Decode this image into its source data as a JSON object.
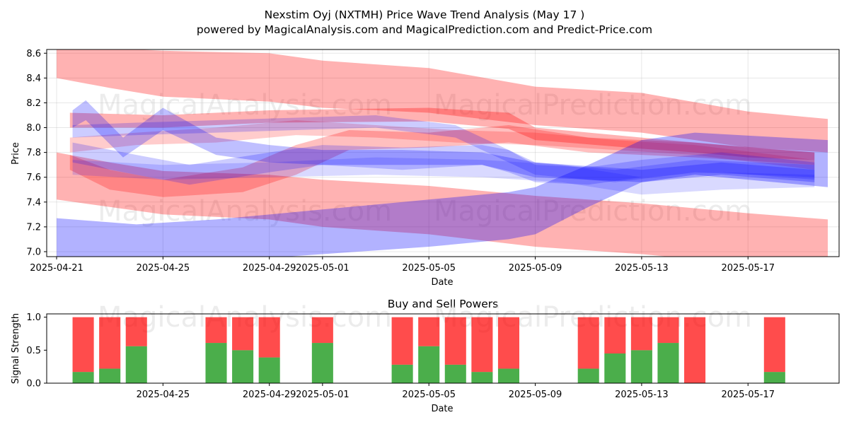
{
  "title_line1": "Nexstim Oyj (NXTMH) Price Wave Trend Analysis (May 17 )",
  "title_line2": "powered by MagicalAnalysis.com and MagicalPrediction.com and Predict-Price.com",
  "watermarks": [
    "MagicalAnalysis.com",
    "MagicalPrediction.com"
  ],
  "colors": {
    "red": "#ff0000",
    "blue": "#0000ff",
    "purple": "#800080",
    "buy": "#2ca02c",
    "sell": "#ff0000"
  },
  "chart_data": [
    {
      "type": "area",
      "ylabel": "Price",
      "xlabel": "Date",
      "ylim": [
        6.96,
        8.63
      ],
      "x_range": [
        "2025-04-21",
        "2025-05-20"
      ],
      "y_ticks": [
        "7.0",
        "7.2",
        "7.4",
        "7.6",
        "7.8",
        "8.0",
        "8.2",
        "8.4",
        "8.6"
      ],
      "x_ticks": [
        "2025-04-21",
        "2025-04-25",
        "2025-04-29",
        "2025-05-01",
        "2025-05-05",
        "2025-05-09",
        "2025-05-13",
        "2025-05-17"
      ],
      "grid": true,
      "bands": [
        {
          "name": "red upper channel",
          "color": "red",
          "opacity": 0.3,
          "x": [
            0,
            2,
            4,
            8,
            10,
            14,
            18,
            22,
            26,
            29
          ],
          "upper": [
            8.66,
            8.64,
            8.62,
            8.6,
            8.54,
            8.48,
            8.33,
            8.28,
            8.13,
            8.07
          ],
          "lower": [
            8.4,
            8.32,
            8.25,
            8.21,
            8.16,
            8.12,
            8.02,
            7.96,
            7.84,
            7.8
          ]
        },
        {
          "name": "red lower channel",
          "color": "red",
          "opacity": 0.3,
          "x": [
            0,
            2,
            4,
            8,
            10,
            14,
            18,
            22,
            26,
            29
          ],
          "upper": [
            7.8,
            7.72,
            7.65,
            7.62,
            7.58,
            7.53,
            7.45,
            7.39,
            7.31,
            7.26
          ],
          "lower": [
            7.42,
            7.36,
            7.3,
            7.26,
            7.2,
            7.14,
            7.04,
            6.98,
            6.9,
            6.96
          ]
        },
        {
          "name": "red trend",
          "color": "red",
          "opacity": 0.3,
          "x": [
            0.5,
            4,
            8,
            14,
            17,
            18,
            22,
            24,
            26,
            28.5
          ],
          "upper": [
            8.12,
            8.1,
            8.14,
            8.16,
            8.12,
            8.0,
            7.92,
            7.88,
            7.84,
            7.8
          ],
          "lower": [
            8.0,
            8.0,
            8.04,
            8.05,
            7.99,
            7.9,
            7.83,
            7.8,
            7.76,
            7.74
          ]
        },
        {
          "name": "red wave 1",
          "color": "red",
          "opacity": 0.25,
          "x": [
            0.5,
            2,
            4,
            7,
            9,
            11,
            14,
            17,
            20,
            24,
            28.5
          ],
          "upper": [
            7.78,
            7.66,
            7.58,
            7.68,
            7.86,
            7.98,
            7.96,
            8.02,
            7.92,
            7.88,
            7.8
          ],
          "lower": [
            7.66,
            7.5,
            7.44,
            7.48,
            7.62,
            7.82,
            7.84,
            7.88,
            7.8,
            7.76,
            7.7
          ]
        },
        {
          "name": "red wave 2",
          "color": "red",
          "opacity": 0.2,
          "x": [
            0.5,
            3,
            6,
            9,
            12,
            15,
            18,
            21,
            24,
            28.5
          ],
          "upper": [
            7.92,
            7.96,
            8.0,
            8.06,
            8.02,
            7.98,
            7.96,
            7.9,
            7.86,
            7.74
          ],
          "lower": [
            7.8,
            7.86,
            7.88,
            7.94,
            7.92,
            7.88,
            7.86,
            7.82,
            7.78,
            7.66
          ]
        },
        {
          "name": "blue lower channel",
          "color": "blue",
          "opacity": 0.3,
          "x": [
            0,
            3,
            6,
            10,
            14,
            17,
            18,
            20,
            22,
            24,
            29
          ],
          "upper": [
            7.27,
            7.22,
            7.26,
            7.34,
            7.42,
            7.48,
            7.52,
            7.7,
            7.9,
            7.96,
            7.9
          ],
          "lower": [
            6.92,
            6.86,
            6.92,
            6.98,
            7.04,
            7.1,
            7.14,
            7.36,
            7.56,
            7.62,
            7.52
          ]
        },
        {
          "name": "blue wave 1",
          "color": "blue",
          "opacity": 0.25,
          "x": [
            0.6,
            1.1,
            2.5,
            4,
            6,
            8,
            10,
            13,
            16,
            18,
            22,
            25,
            28.5
          ],
          "upper": [
            8.14,
            8.22,
            7.92,
            8.16,
            7.92,
            7.86,
            7.82,
            7.82,
            7.8,
            7.72,
            7.66,
            7.72,
            7.66
          ],
          "lower": [
            8.0,
            8.06,
            7.76,
            7.98,
            7.78,
            7.72,
            7.7,
            7.7,
            7.7,
            7.6,
            7.56,
            7.62,
            7.56
          ]
        },
        {
          "name": "blue wave 2",
          "color": "blue",
          "opacity": 0.2,
          "x": [
            0.6,
            3,
            5,
            8,
            10,
            13,
            16,
            17,
            18,
            20,
            22,
            25,
            28.5
          ],
          "upper": [
            7.88,
            7.78,
            7.7,
            7.8,
            7.86,
            7.84,
            7.86,
            7.82,
            7.7,
            7.68,
            7.74,
            7.8,
            7.72
          ],
          "lower": [
            7.72,
            7.62,
            7.54,
            7.64,
            7.7,
            7.66,
            7.7,
            7.64,
            7.56,
            7.54,
            7.6,
            7.64,
            7.58
          ]
        },
        {
          "name": "blue wave 3",
          "color": "blue",
          "opacity": 0.2,
          "x": [
            0.6,
            3,
            6,
            9,
            12,
            15,
            18,
            21,
            24,
            28.5
          ],
          "upper": [
            8.02,
            8.04,
            8.06,
            8.08,
            8.1,
            8.02,
            7.72,
            7.66,
            7.74,
            7.7
          ],
          "lower": [
            7.92,
            7.94,
            7.96,
            7.98,
            8.0,
            7.92,
            7.62,
            7.56,
            7.64,
            7.6
          ]
        },
        {
          "name": "blue wave 4",
          "color": "blue",
          "opacity": 0.15,
          "x": [
            0.6,
            4,
            8,
            12,
            16,
            19,
            22,
            25,
            28.5
          ],
          "upper": [
            7.74,
            7.7,
            7.72,
            7.76,
            7.74,
            7.7,
            7.6,
            7.64,
            7.62
          ],
          "lower": [
            7.62,
            7.58,
            7.6,
            7.62,
            7.6,
            7.56,
            7.46,
            7.5,
            7.52
          ]
        }
      ]
    },
    {
      "type": "bar",
      "title": "Buy and Sell Powers",
      "ylabel": "Signal Strength",
      "xlabel": "Date",
      "ylim": [
        0,
        1.05
      ],
      "y_ticks": [
        "0.0",
        "0.5",
        "1.0"
      ],
      "x_ticks": [
        "2025-04-25",
        "2025-04-29",
        "2025-05-01",
        "2025-05-05",
        "2025-05-09",
        "2025-05-13",
        "2025-05-17"
      ],
      "categories": [
        "2025-04-22",
        "2025-04-23",
        "2025-04-24",
        "2025-04-27",
        "2025-04-28",
        "2025-04-29",
        "2025-05-01",
        "2025-05-04",
        "2025-05-05",
        "2025-05-06",
        "2025-05-07",
        "2025-05-08",
        "2025-05-11",
        "2025-05-12",
        "2025-05-13",
        "2025-05-14",
        "2025-05-15",
        "2025-05-18"
      ],
      "series": [
        {
          "name": "Buy",
          "color": "green",
          "values": [
            0.17,
            0.22,
            0.56,
            0.61,
            0.5,
            0.39,
            0.61,
            0.28,
            0.56,
            0.28,
            0.17,
            0.22,
            0.22,
            0.45,
            0.5,
            0.61,
            0.0,
            0.17
          ]
        },
        {
          "name": "Sell",
          "color": "red",
          "values": [
            0.83,
            0.78,
            0.44,
            0.39,
            0.5,
            0.61,
            0.39,
            0.72,
            0.44,
            0.72,
            0.83,
            0.78,
            0.78,
            0.55,
            0.5,
            0.39,
            1.0,
            0.83
          ]
        }
      ]
    }
  ]
}
